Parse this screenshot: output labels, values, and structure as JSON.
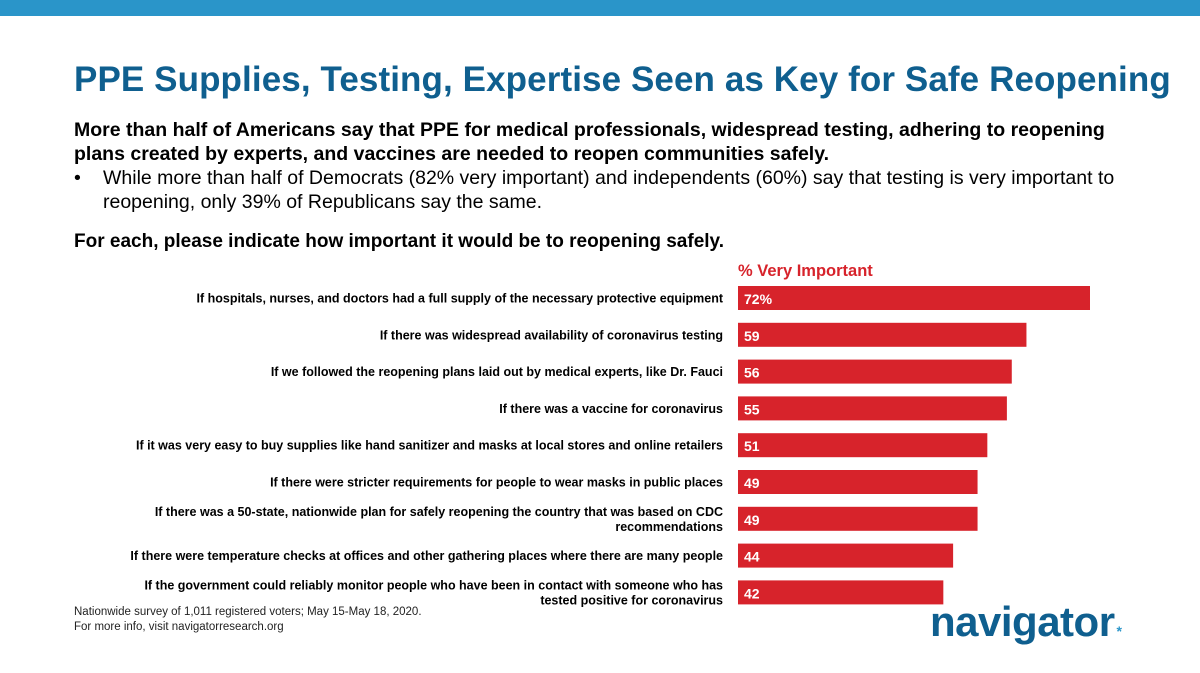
{
  "title": "PPE Supplies, Testing, Expertise Seen as Key for Safe Reopening",
  "subtitle": "More than half of Americans say that PPE for medical professionals, widespread testing, adhering to reopening plans created by experts, and vaccines are needed to reopen communities safely.",
  "bullet": {
    "marker": "•",
    "text": "While more than half of Democrats (82% very important) and independents (60%) say that testing is very important to reopening, only 39% of Republicans say the same."
  },
  "question": "For each, please indicate how important it would be to reopening safely.",
  "chart_data": {
    "type": "bar",
    "orientation": "horizontal",
    "series_label": "% Very Important",
    "bar_color": "#d7232b",
    "label_color": "#ffffff",
    "header_color": "#d7232b",
    "categories": [
      [
        "If hospitals, nurses, and doctors had a full supply of the necessary protective equipment"
      ],
      [
        "If there was widespread availability of coronavirus testing"
      ],
      [
        "If we followed the reopening plans laid out by medical experts, like Dr. Fauci"
      ],
      [
        "If there was a vaccine for coronavirus"
      ],
      [
        "If it was very easy to buy supplies like hand sanitizer and masks at local stores and online retailers"
      ],
      [
        "If there were stricter requirements for people to wear masks in public places"
      ],
      [
        "If there was a 50-state, nationwide plan for safely reopening the country that was based on CDC",
        "recommendations"
      ],
      [
        "If there were temperature checks at offices and other gathering places where there are many people"
      ],
      [
        "If the government could reliably monitor people who have been in contact with someone who has",
        "tested positive for coronavirus"
      ]
    ],
    "values": [
      72,
      59,
      56,
      55,
      51,
      49,
      49,
      44,
      42
    ],
    "value_labels": [
      "72%",
      "59",
      "56",
      "55",
      "51",
      "49",
      "49",
      "44",
      "42"
    ],
    "xlim": [
      0,
      72
    ]
  },
  "footer": {
    "line1": "Nationwide survey of 1,011 registered voters; May 15-May 18, 2020.",
    "line2": "For more info, visit navigatorresearch.org"
  },
  "logo": {
    "text": "navigator",
    "star": "*"
  }
}
